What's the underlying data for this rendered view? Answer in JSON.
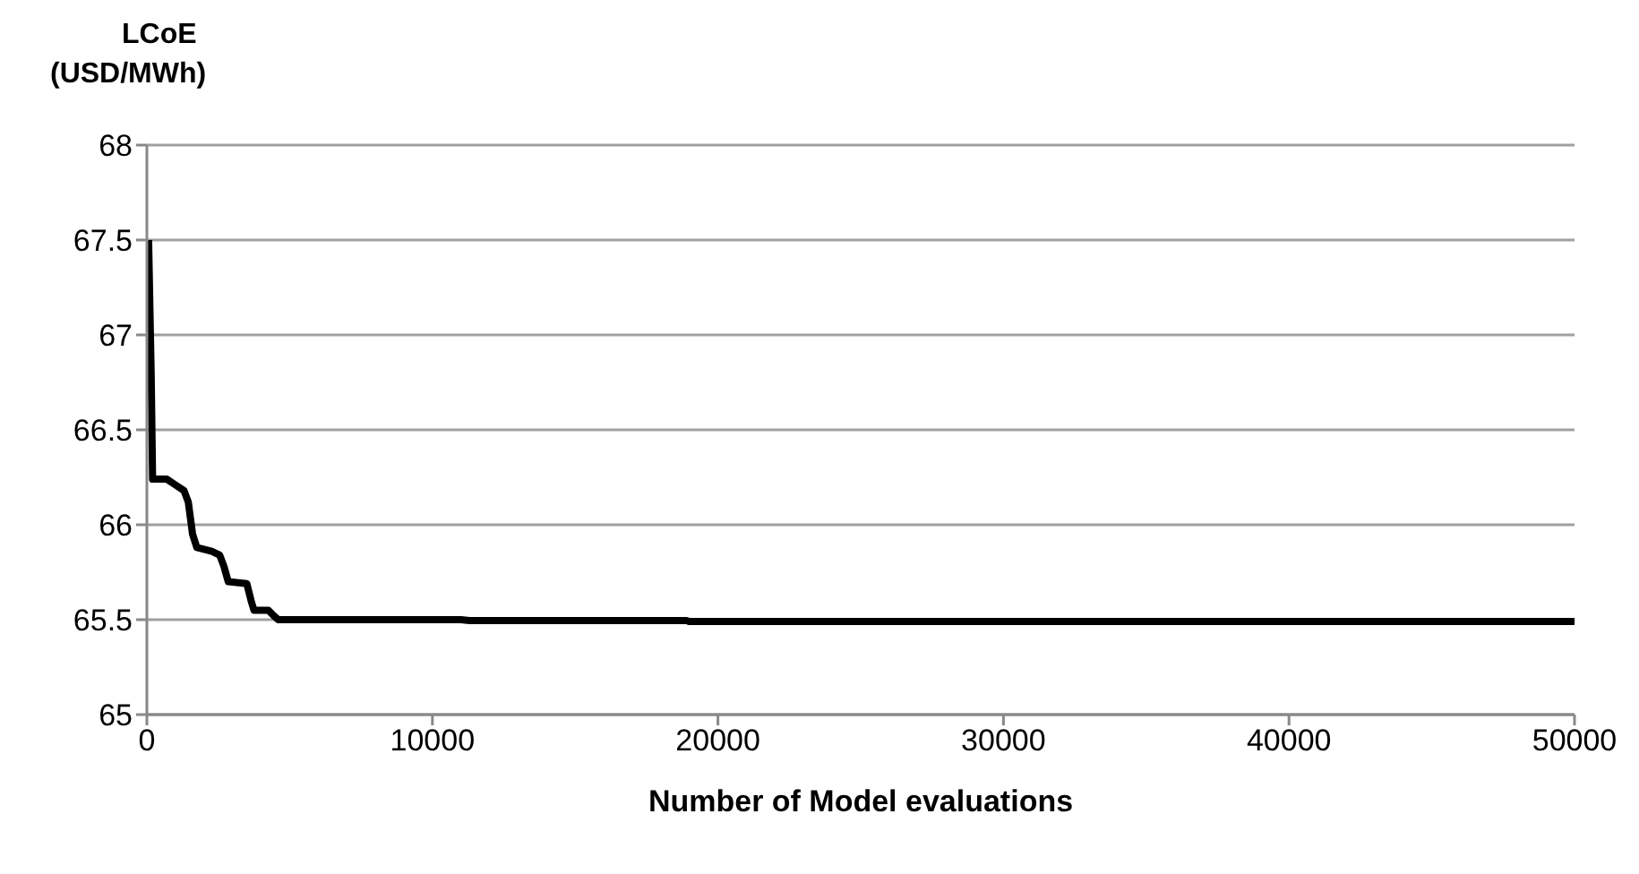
{
  "chart_data": {
    "type": "line",
    "xlabel": "Number of Model evaluations",
    "ylabel": "LCoE (USD/MWh)",
    "x": [
      60,
      150,
      200,
      700,
      1000,
      1300,
      1450,
      1600,
      1750,
      2270,
      2550,
      2700,
      2850,
      3500,
      3650,
      3750,
      4250,
      4450,
      4600,
      11000,
      11300,
      18900,
      19000,
      50000
    ],
    "series": [
      {
        "color": "#000000",
        "values": [
          67.5,
          66.8,
          66.24,
          66.24,
          66.21,
          66.18,
          66.12,
          65.95,
          65.88,
          65.86,
          65.84,
          65.78,
          65.7,
          65.69,
          65.6,
          65.55,
          65.55,
          65.52,
          65.5,
          65.5,
          65.495,
          65.495,
          65.49,
          65.49
        ]
      }
    ],
    "xlim": [
      0,
      50000
    ],
    "xticks": [
      0,
      10000,
      20000,
      30000,
      40000,
      50000
    ],
    "ylim": [
      65,
      68
    ],
    "yticks": [
      65,
      65.5,
      66,
      66.5,
      67,
      67.5,
      68
    ],
    "grid": "y",
    "legend": false,
    "marker": "none",
    "line_style": "solid"
  }
}
